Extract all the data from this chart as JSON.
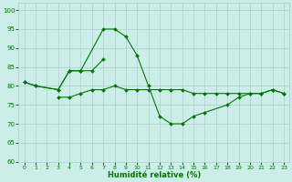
{
  "background_color": "#cceee8",
  "grid_color": "#aacccc",
  "line_color": "#007700",
  "xlabel": "Humidité relative (%)",
  "ylim": [
    60,
    102
  ],
  "xlim": [
    -0.5,
    23.5
  ],
  "yticks": [
    60,
    65,
    70,
    75,
    80,
    85,
    90,
    95,
    100
  ],
  "xticks": [
    0,
    1,
    2,
    3,
    4,
    5,
    6,
    7,
    8,
    9,
    10,
    11,
    12,
    13,
    14,
    15,
    16,
    17,
    18,
    19,
    20,
    21,
    22,
    23
  ],
  "line1_pts": [
    [
      0,
      81
    ],
    [
      1,
      80
    ],
    [
      3,
      79
    ],
    [
      4,
      84
    ],
    [
      5,
      84
    ],
    [
      7,
      95
    ],
    [
      8,
      95
    ],
    [
      9,
      93
    ],
    [
      10,
      88
    ],
    [
      11,
      80
    ],
    [
      12,
      72
    ],
    [
      13,
      70
    ],
    [
      14,
      70
    ],
    [
      15,
      72
    ],
    [
      16,
      73
    ],
    [
      18,
      75
    ],
    [
      19,
      77
    ],
    [
      20,
      78
    ],
    [
      21,
      78
    ],
    [
      22,
      79
    ],
    [
      23,
      78
    ]
  ],
  "line2_pts": [
    [
      0,
      81
    ],
    [
      1,
      80
    ],
    [
      3,
      79
    ],
    [
      4,
      84
    ],
    [
      5,
      84
    ],
    [
      6,
      84
    ],
    [
      7,
      87
    ]
  ],
  "line3_pts": [
    [
      3,
      77
    ],
    [
      4,
      77
    ],
    [
      5,
      78
    ],
    [
      6,
      79
    ],
    [
      7,
      79
    ],
    [
      8,
      80
    ],
    [
      9,
      79
    ],
    [
      10,
      79
    ],
    [
      11,
      79
    ],
    [
      12,
      79
    ],
    [
      13,
      79
    ],
    [
      14,
      79
    ],
    [
      15,
      78
    ],
    [
      16,
      78
    ],
    [
      17,
      78
    ],
    [
      18,
      78
    ],
    [
      19,
      78
    ],
    [
      20,
      78
    ],
    [
      21,
      78
    ],
    [
      22,
      79
    ],
    [
      23,
      78
    ]
  ]
}
